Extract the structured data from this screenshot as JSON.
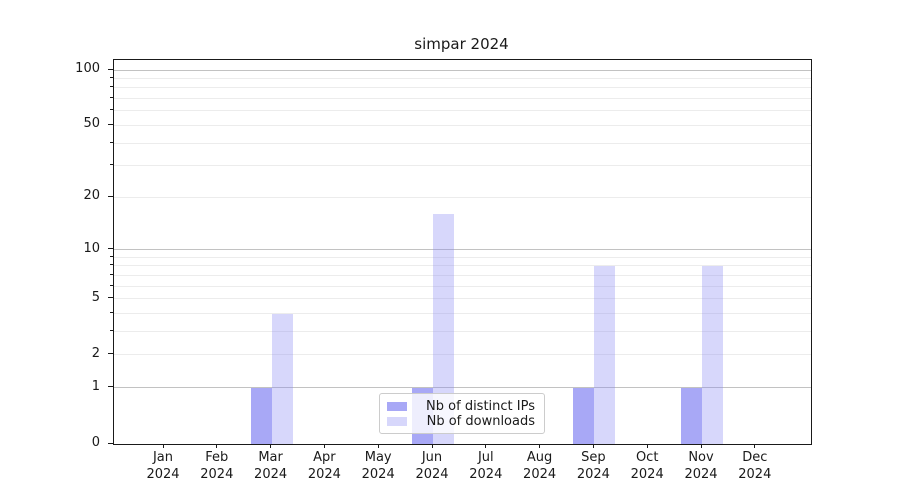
{
  "title": "simpar 2024",
  "legend": {
    "position": "lower center",
    "items": [
      {
        "label": "Nb of distinct IPs",
        "fill": "rgba(134,134,242,0.72)"
      },
      {
        "label": "Nb of downloads",
        "fill": "rgba(134,134,242,0.33)"
      }
    ]
  },
  "chart_data": {
    "type": "bar",
    "title": "simpar 2024",
    "categories": [
      "Jan",
      "Feb",
      "Mar",
      "Apr",
      "May",
      "Jun",
      "Jul",
      "Aug",
      "Sep",
      "Oct",
      "Nov",
      "Dec"
    ],
    "year": "2024",
    "series": [
      {
        "name": "Nb of distinct IPs",
        "fill": "rgba(134,134,242,0.72)",
        "apparent_color": "#a9a9f4",
        "values": [
          0,
          0,
          1,
          0,
          0,
          1,
          0,
          0,
          1,
          0,
          1,
          0
        ]
      },
      {
        "name": "Nb of downloads",
        "fill": "rgba(134,134,242,0.33)",
        "apparent_color": "#d9d9fa",
        "values": [
          0,
          0,
          4,
          0,
          0,
          16,
          0,
          0,
          8,
          0,
          8,
          0
        ]
      }
    ],
    "xlabel": "",
    "ylabel": "",
    "yscale": "log1p",
    "ylim": [
      0,
      113
    ],
    "yticks": [
      0,
      1,
      2,
      5,
      10,
      20,
      50,
      100
    ],
    "major_gridline_values": [
      1,
      10,
      100
    ],
    "minor_gridline_values": [
      2,
      3,
      4,
      5,
      6,
      7,
      8,
      9,
      20,
      30,
      40,
      50,
      60,
      70,
      80,
      90
    ],
    "grid": true,
    "legend_position": "lower center"
  },
  "colors": {
    "major_grid": "#c2c2c2",
    "minor_grid": "#ececec",
    "axis": "#1a1a1a",
    "background": "#ffffff"
  }
}
